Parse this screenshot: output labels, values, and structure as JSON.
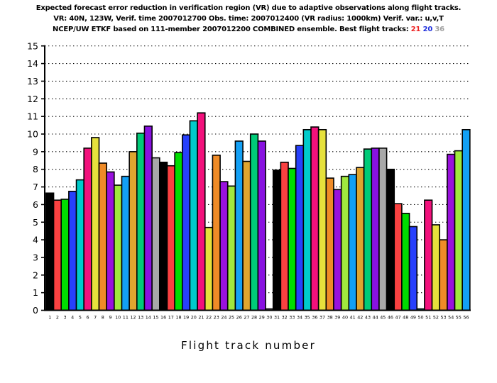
{
  "header": {
    "line1": "Expected forecast error reduction in verification region (VR) due to adaptive observations along flight tracks.",
    "line2": "VR: 40N, 123W, Verif. time 2007012700 Obs. time: 2007012400 (VR radius: 1000km)  Verif. var.: u,v,T",
    "line3_prefix": "NCEP/UW ETKF based on 111-member 2007012200 COMBINED ensemble.  Best flight tracks: ",
    "best_tracks": [
      {
        "label": "21",
        "color": "#ee2222"
      },
      {
        "label": "20",
        "color": "#2233dd"
      },
      {
        "label": "36",
        "color": "#a0a0a0"
      }
    ]
  },
  "chart_data": {
    "type": "bar",
    "title": "Expected forecast error reduction in verification region (VR) due to adaptive observations along flight tracks.",
    "subtitle1": "VR: 40N, 123W, Verif. time 2007012700 Obs. time: 2007012400 (VR radius: 1000km)  Verif. var.: u,v,T",
    "subtitle2": "NCEP/UW ETKF based on 111-member 2007012200 COMBINED ensemble.  Best flight tracks: 21 20 36",
    "xlabel": "Flight track number",
    "ylabel": "",
    "ylim": [
      0,
      15
    ],
    "ytick_step": 1,
    "grid": "horizontal dotted lines at each integer from 1 to 15",
    "legend": "none",
    "y_ticks": [
      "0",
      "1",
      "2",
      "3",
      "4",
      "5",
      "6",
      "7",
      "8",
      "9",
      "10",
      "11",
      "12",
      "13",
      "14",
      "15"
    ],
    "categories": [
      "1",
      "2",
      "3",
      "4",
      "5",
      "6",
      "7",
      "8",
      "9",
      "10",
      "11",
      "12",
      "13",
      "14",
      "15",
      "16",
      "17",
      "18",
      "19",
      "20",
      "21",
      "22",
      "23",
      "24",
      "25",
      "26",
      "27",
      "28",
      "29",
      "30",
      "31",
      "32",
      "33",
      "34",
      "35",
      "36",
      "37",
      "38",
      "39",
      "40",
      "41",
      "42",
      "43",
      "44",
      "45",
      "46",
      "47",
      "48",
      "49",
      "50",
      "51",
      "52",
      "53",
      "54",
      "55",
      "56"
    ],
    "values": [
      6.65,
      6.25,
      6.3,
      6.75,
      7.4,
      9.2,
      9.8,
      8.35,
      7.85,
      7.1,
      7.6,
      9.0,
      10.05,
      10.45,
      8.65,
      8.4,
      8.2,
      8.95,
      9.95,
      10.75,
      11.2,
      4.7,
      8.8,
      7.3,
      7.05,
      9.6,
      8.45,
      10.0,
      9.6,
      0.08,
      7.95,
      8.4,
      8.05,
      9.35,
      10.25,
      10.4,
      10.25,
      7.5,
      6.85,
      7.6,
      7.7,
      8.1,
      9.15,
      9.2,
      9.2,
      8.0,
      6.05,
      5.5,
      4.75,
      0.08,
      6.25,
      4.85,
      4.0,
      8.85,
      9.05,
      10.25
    ],
    "palette_cycle_15": [
      "#000000",
      "#fa4141",
      "#00dd00",
      "#2740fc",
      "#00cbcb",
      "#f2117c",
      "#e6e13c",
      "#ef8b27",
      "#9911dd",
      "#a0e83e",
      "#13a0f5",
      "#dfa52f",
      "#00cb78",
      "#8812e0",
      "#a8a8a8"
    ],
    "bar_outline_color": "#000000",
    "best_tracks_highlight": [
      "21",
      "20",
      "36"
    ]
  }
}
